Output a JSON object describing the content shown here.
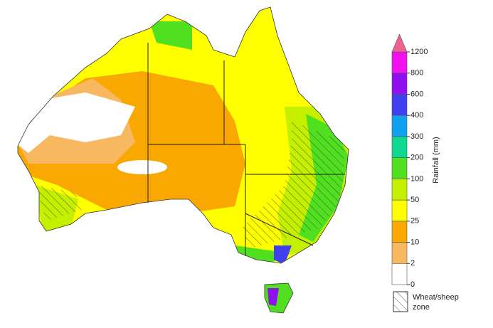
{
  "legend": {
    "title": "Rainfall (mm)",
    "ticks": [
      "0",
      "2",
      "10",
      "25",
      "50",
      "100",
      "200",
      "300",
      "400",
      "600",
      "800",
      "1200"
    ],
    "colors": [
      "#ffffff",
      "#f8b860",
      "#f8a800",
      "#ffff00",
      "#c4f000",
      "#50e020",
      "#10d890",
      "#10a0f0",
      "#4040f0",
      "#9010f0",
      "#f010f0",
      "#f06090"
    ],
    "zone_label": [
      "Wheat/sheep",
      "zone"
    ]
  }
}
